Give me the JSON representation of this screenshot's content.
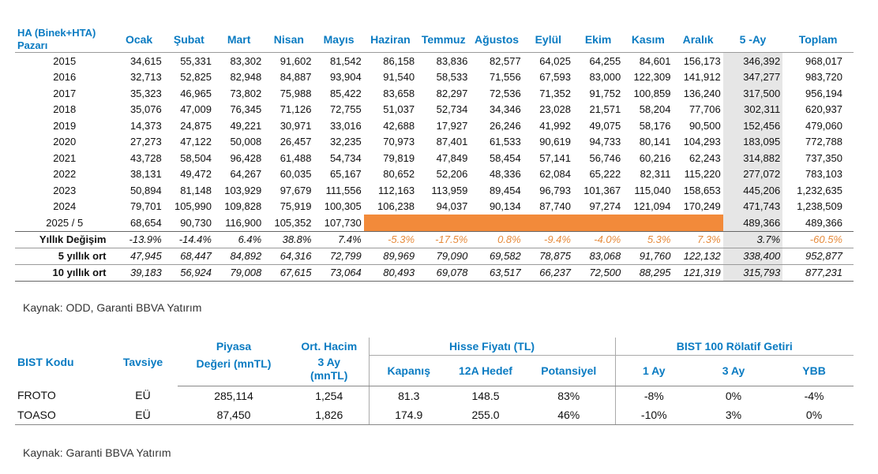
{
  "table1": {
    "market_header": [
      "HA (Binek+HTA)",
      "Pazarı"
    ],
    "columns": [
      "Ocak",
      "Şubat",
      "Mart",
      "Nisan",
      "Mayıs",
      "Haziran",
      "Temmuz",
      "Ağustos",
      "Eylül",
      "Ekim",
      "Kasım",
      "Aralık",
      "5 -Ay",
      "Toplam"
    ],
    "years": [
      {
        "year": "2015",
        "values": [
          "34,615",
          "55,331",
          "83,302",
          "91,602",
          "81,542",
          "86,158",
          "83,836",
          "82,577",
          "64,025",
          "64,255",
          "84,601",
          "156,173",
          "346,392",
          "968,017"
        ]
      },
      {
        "year": "2016",
        "values": [
          "32,713",
          "52,825",
          "82,948",
          "84,887",
          "93,904",
          "91,540",
          "58,533",
          "71,556",
          "67,593",
          "83,000",
          "122,309",
          "141,912",
          "347,277",
          "983,720"
        ]
      },
      {
        "year": "2017",
        "values": [
          "35,323",
          "46,965",
          "73,802",
          "75,988",
          "85,422",
          "83,658",
          "82,297",
          "72,536",
          "71,352",
          "91,752",
          "100,859",
          "136,240",
          "317,500",
          "956,194"
        ]
      },
      {
        "year": "2018",
        "values": [
          "35,076",
          "47,009",
          "76,345",
          "71,126",
          "72,755",
          "51,037",
          "52,734",
          "34,346",
          "23,028",
          "21,571",
          "58,204",
          "77,706",
          "302,311",
          "620,937"
        ]
      },
      {
        "year": "2019",
        "values": [
          "14,373",
          "24,875",
          "49,221",
          "30,971",
          "33,016",
          "42,688",
          "17,927",
          "26,246",
          "41,992",
          "49,075",
          "58,176",
          "90,500",
          "152,456",
          "479,060"
        ]
      },
      {
        "year": "2020",
        "values": [
          "27,273",
          "47,122",
          "50,008",
          "26,457",
          "32,235",
          "70,973",
          "87,401",
          "61,533",
          "90,619",
          "94,733",
          "80,141",
          "104,293",
          "183,095",
          "772,788"
        ]
      },
      {
        "year": "2021",
        "values": [
          "43,728",
          "58,504",
          "96,428",
          "61,488",
          "54,734",
          "79,819",
          "47,849",
          "58,454",
          "57,141",
          "56,746",
          "60,216",
          "62,243",
          "314,882",
          "737,350"
        ]
      },
      {
        "year": "2022",
        "values": [
          "38,131",
          "49,472",
          "64,267",
          "60,035",
          "65,167",
          "80,652",
          "52,206",
          "48,336",
          "62,084",
          "65,222",
          "82,311",
          "115,220",
          "277,072",
          "783,103"
        ]
      },
      {
        "year": "2023",
        "values": [
          "50,894",
          "81,148",
          "103,929",
          "97,679",
          "111,556",
          "112,163",
          "113,959",
          "89,454",
          "96,793",
          "101,367",
          "115,040",
          "158,653",
          "445,206",
          "1,232,635"
        ]
      },
      {
        "year": "2024",
        "values": [
          "79,701",
          "105,990",
          "109,828",
          "75,919",
          "100,305",
          "106,238",
          "94,037",
          "90,134",
          "87,740",
          "97,274",
          "121,094",
          "170,249",
          "471,743",
          "1,238,509"
        ]
      },
      {
        "year": "2025 / 5",
        "values": [
          "68,654",
          "90,730",
          "116,900",
          "105,352",
          "107,730",
          "",
          "",
          "",
          "",
          "",
          "",
          "",
          "489,366",
          "489,366"
        ]
      }
    ],
    "stats": [
      {
        "label": "Yıllık Değişim",
        "values": [
          "-13.9%",
          "-14.4%",
          "6.4%",
          "38.8%",
          "7.4%",
          "-5.3%",
          "-17.5%",
          "0.8%",
          "-9.4%",
          "-4.0%",
          "5.3%",
          "7.3%",
          "3.7%",
          "-60.5%"
        ]
      },
      {
        "label": "5 yıllık ort",
        "values": [
          "47,945",
          "68,447",
          "84,892",
          "64,316",
          "72,799",
          "89,969",
          "79,090",
          "69,582",
          "78,875",
          "83,068",
          "91,760",
          "122,132",
          "338,400",
          "952,877"
        ]
      },
      {
        "label": "10 yıllık ort",
        "values": [
          "39,183",
          "56,924",
          "79,008",
          "67,615",
          "73,064",
          "80,493",
          "69,078",
          "63,517",
          "66,237",
          "72,500",
          "88,295",
          "121,319",
          "315,793",
          "877,231"
        ]
      }
    ],
    "colors": {
      "header": "#0a7bc2",
      "highlight": "#f28a3a",
      "orange_text": "#e68a3a",
      "red_text": "#c0504d",
      "shade": "#e6e6e6"
    }
  },
  "source1": "Kaynak: ODD, Garanti BBVA Yatırım",
  "table2": {
    "headers": {
      "code": "BIST Kodu",
      "rec": "Tavsiye",
      "mcap_top": "Piyasa",
      "mcap_bottom": "Değeri (mnTL)",
      "vol_top": "Ort. Hacim",
      "vol_mid": "3 Ay",
      "vol_bottom": "(mnTL)",
      "price_group": "Hisse Fiyatı (TL)",
      "close": "Kapanış",
      "target": "12A Hedef",
      "potential": "Potansiyel",
      "rel_group": "BIST 100 Rölatif Getiri",
      "m1": "1 Ay",
      "m3": "3 Ay",
      "ytd": "YBB"
    },
    "rows": [
      {
        "code": "FROTO",
        "rec": "EÜ",
        "mcap": "285,114",
        "vol": "1,254",
        "close": "81.3",
        "target": "148.5",
        "potential": "83%",
        "m1": "-8%",
        "m3": "0%",
        "ytd": "-4%"
      },
      {
        "code": "TOASO",
        "rec": "EÜ",
        "mcap": "87,450",
        "vol": "1,826",
        "close": "174.9",
        "target": "255.0",
        "potential": "46%",
        "m1": "-10%",
        "m3": "3%",
        "ytd": "0%"
      }
    ]
  },
  "source2": "Kaynak: Garanti BBVA Yatırım"
}
